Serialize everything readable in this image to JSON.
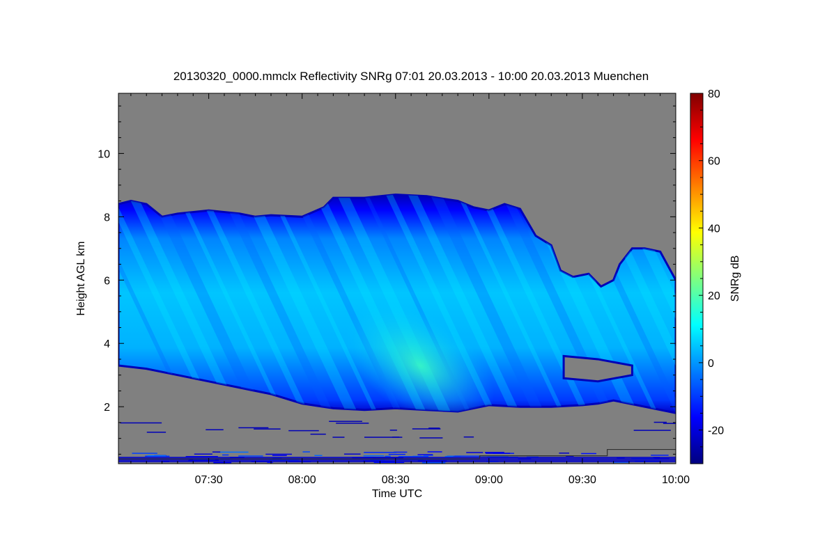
{
  "chart_data": {
    "type": "heatmap",
    "title": "20130320_0000.mmclx Reflectivity SNRg   07:01 20.03.2013 - 10:00 20.03.2013 Muenchen",
    "xlabel": "Time UTC",
    "ylabel": "Height AGL km",
    "x_range_minutes_utc": [
      421,
      600
    ],
    "x_ticks": [
      {
        "label": "07:30",
        "minutes": 450
      },
      {
        "label": "08:00",
        "minutes": 480
      },
      {
        "label": "08:30",
        "minutes": 510
      },
      {
        "label": "09:00",
        "minutes": 540
      },
      {
        "label": "09:30",
        "minutes": 570
      },
      {
        "label": "10:00",
        "minutes": 600
      }
    ],
    "ylim": [
      0.2,
      11.9
    ],
    "y_ticks": [
      2,
      4,
      6,
      8,
      10
    ],
    "colorbar": {
      "label": "SNRg dB",
      "range": [
        -30,
        80
      ],
      "ticks": [
        -20,
        0,
        20,
        40,
        60,
        80
      ],
      "colors": [
        "#00007f",
        "#0000ff",
        "#007fff",
        "#00ffff",
        "#7fff7f",
        "#ffff00",
        "#ff7f00",
        "#ff0000",
        "#7f0000"
      ]
    },
    "no_signal_color": "#808080",
    "cloud_top_km": [
      [
        421,
        8.4
      ],
      [
        425,
        8.5
      ],
      [
        430,
        8.4
      ],
      [
        435,
        8.0
      ],
      [
        440,
        8.1
      ],
      [
        450,
        8.2
      ],
      [
        460,
        8.1
      ],
      [
        465,
        8.0
      ],
      [
        470,
        8.05
      ],
      [
        480,
        8.0
      ],
      [
        487,
        8.3
      ],
      [
        490,
        8.6
      ],
      [
        500,
        8.6
      ],
      [
        510,
        8.7
      ],
      [
        520,
        8.65
      ],
      [
        530,
        8.5
      ],
      [
        535,
        8.3
      ],
      [
        540,
        8.2
      ],
      [
        545,
        8.4
      ],
      [
        550,
        8.25
      ],
      [
        555,
        7.4
      ],
      [
        560,
        7.1
      ],
      [
        563,
        6.3
      ],
      [
        567,
        6.1
      ],
      [
        572,
        6.2
      ],
      [
        576,
        5.8
      ],
      [
        580,
        6.0
      ],
      [
        582,
        6.5
      ],
      [
        586,
        7.0
      ],
      [
        590,
        7.0
      ],
      [
        595,
        6.9
      ],
      [
        600,
        6.0
      ]
    ],
    "cloud_base_km": [
      [
        421,
        3.3
      ],
      [
        430,
        3.2
      ],
      [
        440,
        3.0
      ],
      [
        450,
        2.8
      ],
      [
        460,
        2.6
      ],
      [
        470,
        2.4
      ],
      [
        480,
        2.1
      ],
      [
        490,
        1.95
      ],
      [
        500,
        1.9
      ],
      [
        510,
        1.95
      ],
      [
        520,
        1.9
      ],
      [
        530,
        1.85
      ],
      [
        540,
        2.05
      ],
      [
        550,
        2.0
      ],
      [
        560,
        2.0
      ],
      [
        570,
        2.05
      ],
      [
        575,
        2.1
      ],
      [
        580,
        2.2
      ],
      [
        585,
        2.1
      ],
      [
        590,
        2.0
      ],
      [
        595,
        1.9
      ],
      [
        600,
        1.8
      ]
    ],
    "clear_gap": {
      "x": [
        564,
        586
      ],
      "top_km": [
        3.6,
        3.5,
        3.3
      ],
      "bottom_km": [
        2.9,
        2.8,
        3.0
      ]
    },
    "enhanced_core": {
      "center": [
        509,
        3.3
      ],
      "value_db": 18,
      "note_value": 18
    },
    "surface_clutter_top_km": 0.6,
    "sensitivity_line_km": [
      [
        421,
        0.35
      ],
      [
        537,
        0.35
      ],
      [
        537,
        0.45
      ],
      [
        578,
        0.45
      ],
      [
        578,
        0.65
      ],
      [
        600,
        0.65
      ]
    ]
  }
}
